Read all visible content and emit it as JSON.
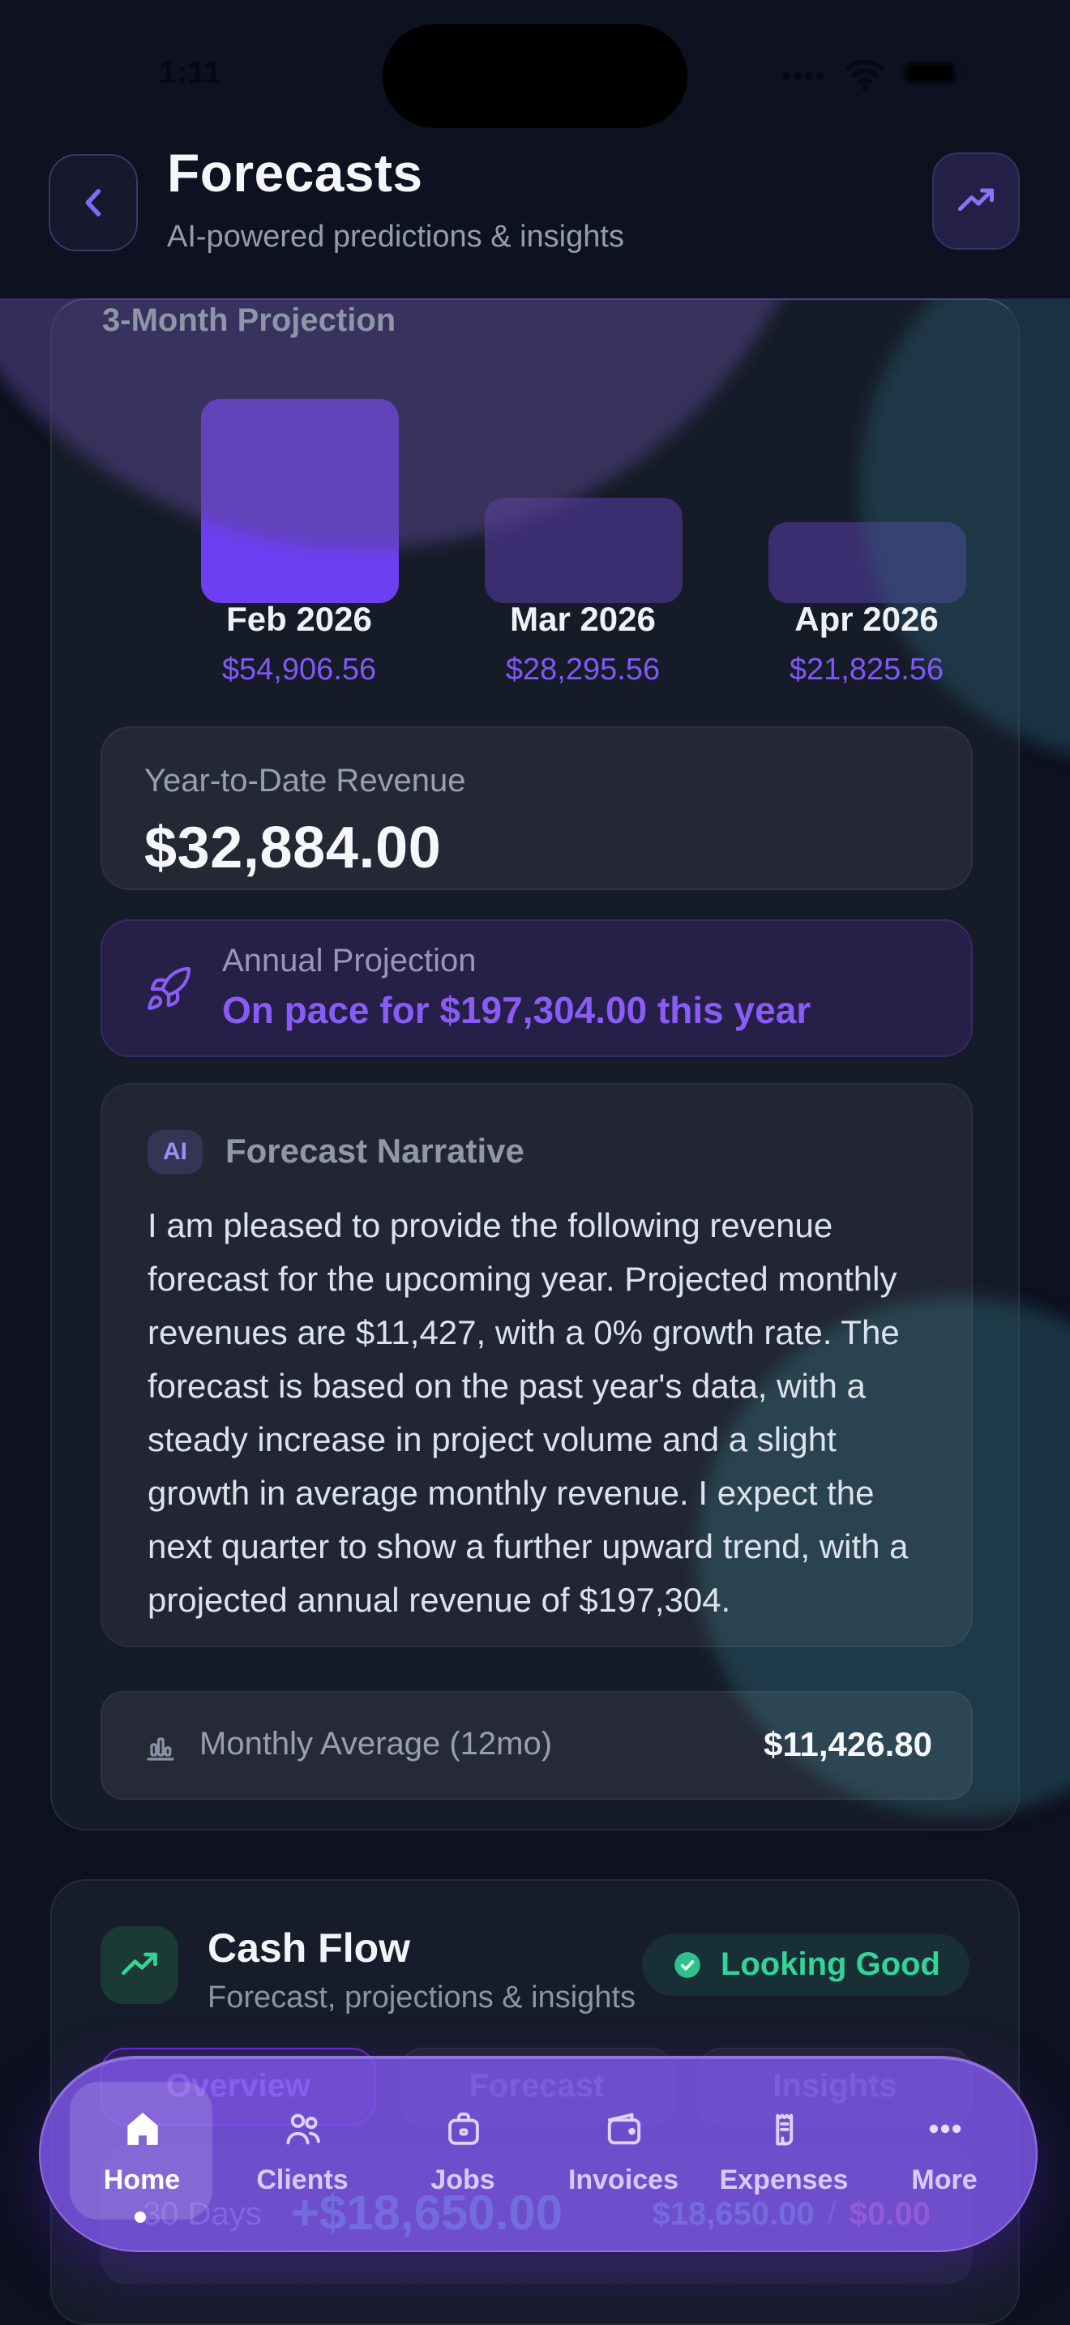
{
  "status_bar": {
    "time": "1:11"
  },
  "header": {
    "title": "Forecasts",
    "subtitle": "AI-powered predictions & insights"
  },
  "colors": {
    "accent_purple": "#8b5cf6",
    "bar_highlight": "#6d3ff2",
    "bar_muted": "#3b2e70",
    "success_green": "#34d399",
    "danger_red": "#f87171",
    "nav_purple": "#7f57ec",
    "card_bg": "#161b28"
  },
  "chart_data": {
    "type": "bar",
    "title": "3-Month Projection",
    "categories": [
      "Feb 2026",
      "Mar 2026",
      "Apr 2026"
    ],
    "values": [
      54906.56,
      28295.56,
      21825.56
    ],
    "value_labels": [
      "$54,906.56",
      "$28,295.56",
      "$21,825.56"
    ],
    "xlabel": "",
    "ylabel": "",
    "ylim": [
      0,
      54906.56
    ],
    "grid": false,
    "legend": false
  },
  "projection": {
    "section_label": "3-Month Projection",
    "ytd": {
      "label": "Year-to-Date Revenue",
      "value": "$32,884.00"
    },
    "annual": {
      "label": "Annual Projection",
      "value": "On pace for $197,304.00 this year"
    },
    "narrative": {
      "badge": "AI",
      "label": "Forecast Narrative",
      "text": "I am pleased to provide the following revenue forecast for the upcoming year. Projected monthly revenues are $11,427, with a 0% growth rate. The forecast is based on the past year's data, with a steady increase in project volume and a slight growth in average monthly revenue. I expect the next quarter to show a further upward trend, with a projected annual revenue of $197,304."
    },
    "monthly_avg": {
      "label": "Monthly Average (12mo)",
      "value": "$11,426.80"
    }
  },
  "cash_flow": {
    "title": "Cash Flow",
    "subtitle": "Forecast, projections & insights",
    "badge": "Looking Good",
    "tabs": [
      "Overview",
      "Forecast",
      "Insights"
    ],
    "active_tab": "Overview",
    "period": {
      "label": "30 Days",
      "net": "+$18,650.00",
      "income": "$18,650.00",
      "separator": "/",
      "expenses": "$0.00"
    }
  },
  "nav": {
    "items": [
      {
        "label": "Home",
        "active": true
      },
      {
        "label": "Clients",
        "active": false
      },
      {
        "label": "Jobs",
        "active": false
      },
      {
        "label": "Invoices",
        "active": false
      },
      {
        "label": "Expenses",
        "active": false
      },
      {
        "label": "More",
        "active": false
      }
    ]
  }
}
